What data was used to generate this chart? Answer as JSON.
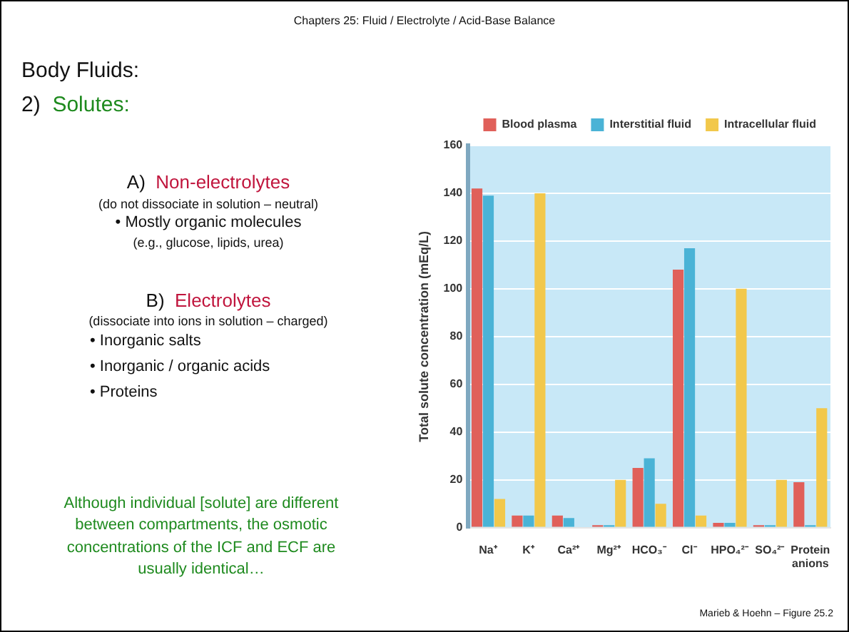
{
  "chart_data": {
    "type": "bar",
    "title": "Chapters 25:  Fluid / Electrolyte / Acid-Base Balance",
    "ylabel": "Total solute concentration (mEq/L)",
    "categories": [
      "Na⁺",
      "K⁺",
      "Ca²⁺",
      "Mg²⁺",
      "HCO₃⁻",
      "Cl⁻",
      "HPO₄²⁻",
      "SO₄²⁻",
      "Protein anions"
    ],
    "series": [
      {
        "name": "Blood plasma",
        "color": "#e0605a",
        "values": [
          142,
          5,
          5,
          1,
          25,
          108,
          2,
          1,
          19
        ]
      },
      {
        "name": "Interstitial fluid",
        "color": "#4ab3d6",
        "values": [
          139,
          5,
          4,
          1,
          29,
          117,
          2,
          1,
          1
        ]
      },
      {
        "name": "Intracellular fluid",
        "color": "#f2c84b",
        "values": [
          12,
          140,
          0,
          20,
          10,
          5,
          100,
          20,
          50
        ]
      }
    ],
    "ylim": [
      0,
      160
    ],
    "yticks": [
      0,
      20,
      40,
      60,
      80,
      100,
      120,
      140,
      160
    ],
    "grid": "y",
    "legend": "top right",
    "annotations": [
      "Body Fluids:",
      "2)",
      "Solutes:",
      "A)",
      "Non-electrolytes",
      "(do not dissociate in solution – neutral)",
      "• Mostly organic molecules",
      "(e.g., glucose, lipids, urea)",
      "B)",
      "Electrolytes",
      "(dissociate into ions in solution – charged)",
      "• Inorganic salts",
      "• Inorganic / organic acids",
      "• Proteins",
      "Although individual [solute] are different between compartments, the osmotic concentrations of the ICF and ECF are usually identical…",
      "Marieb & Hoehn – Figure 25.2"
    ]
  }
}
